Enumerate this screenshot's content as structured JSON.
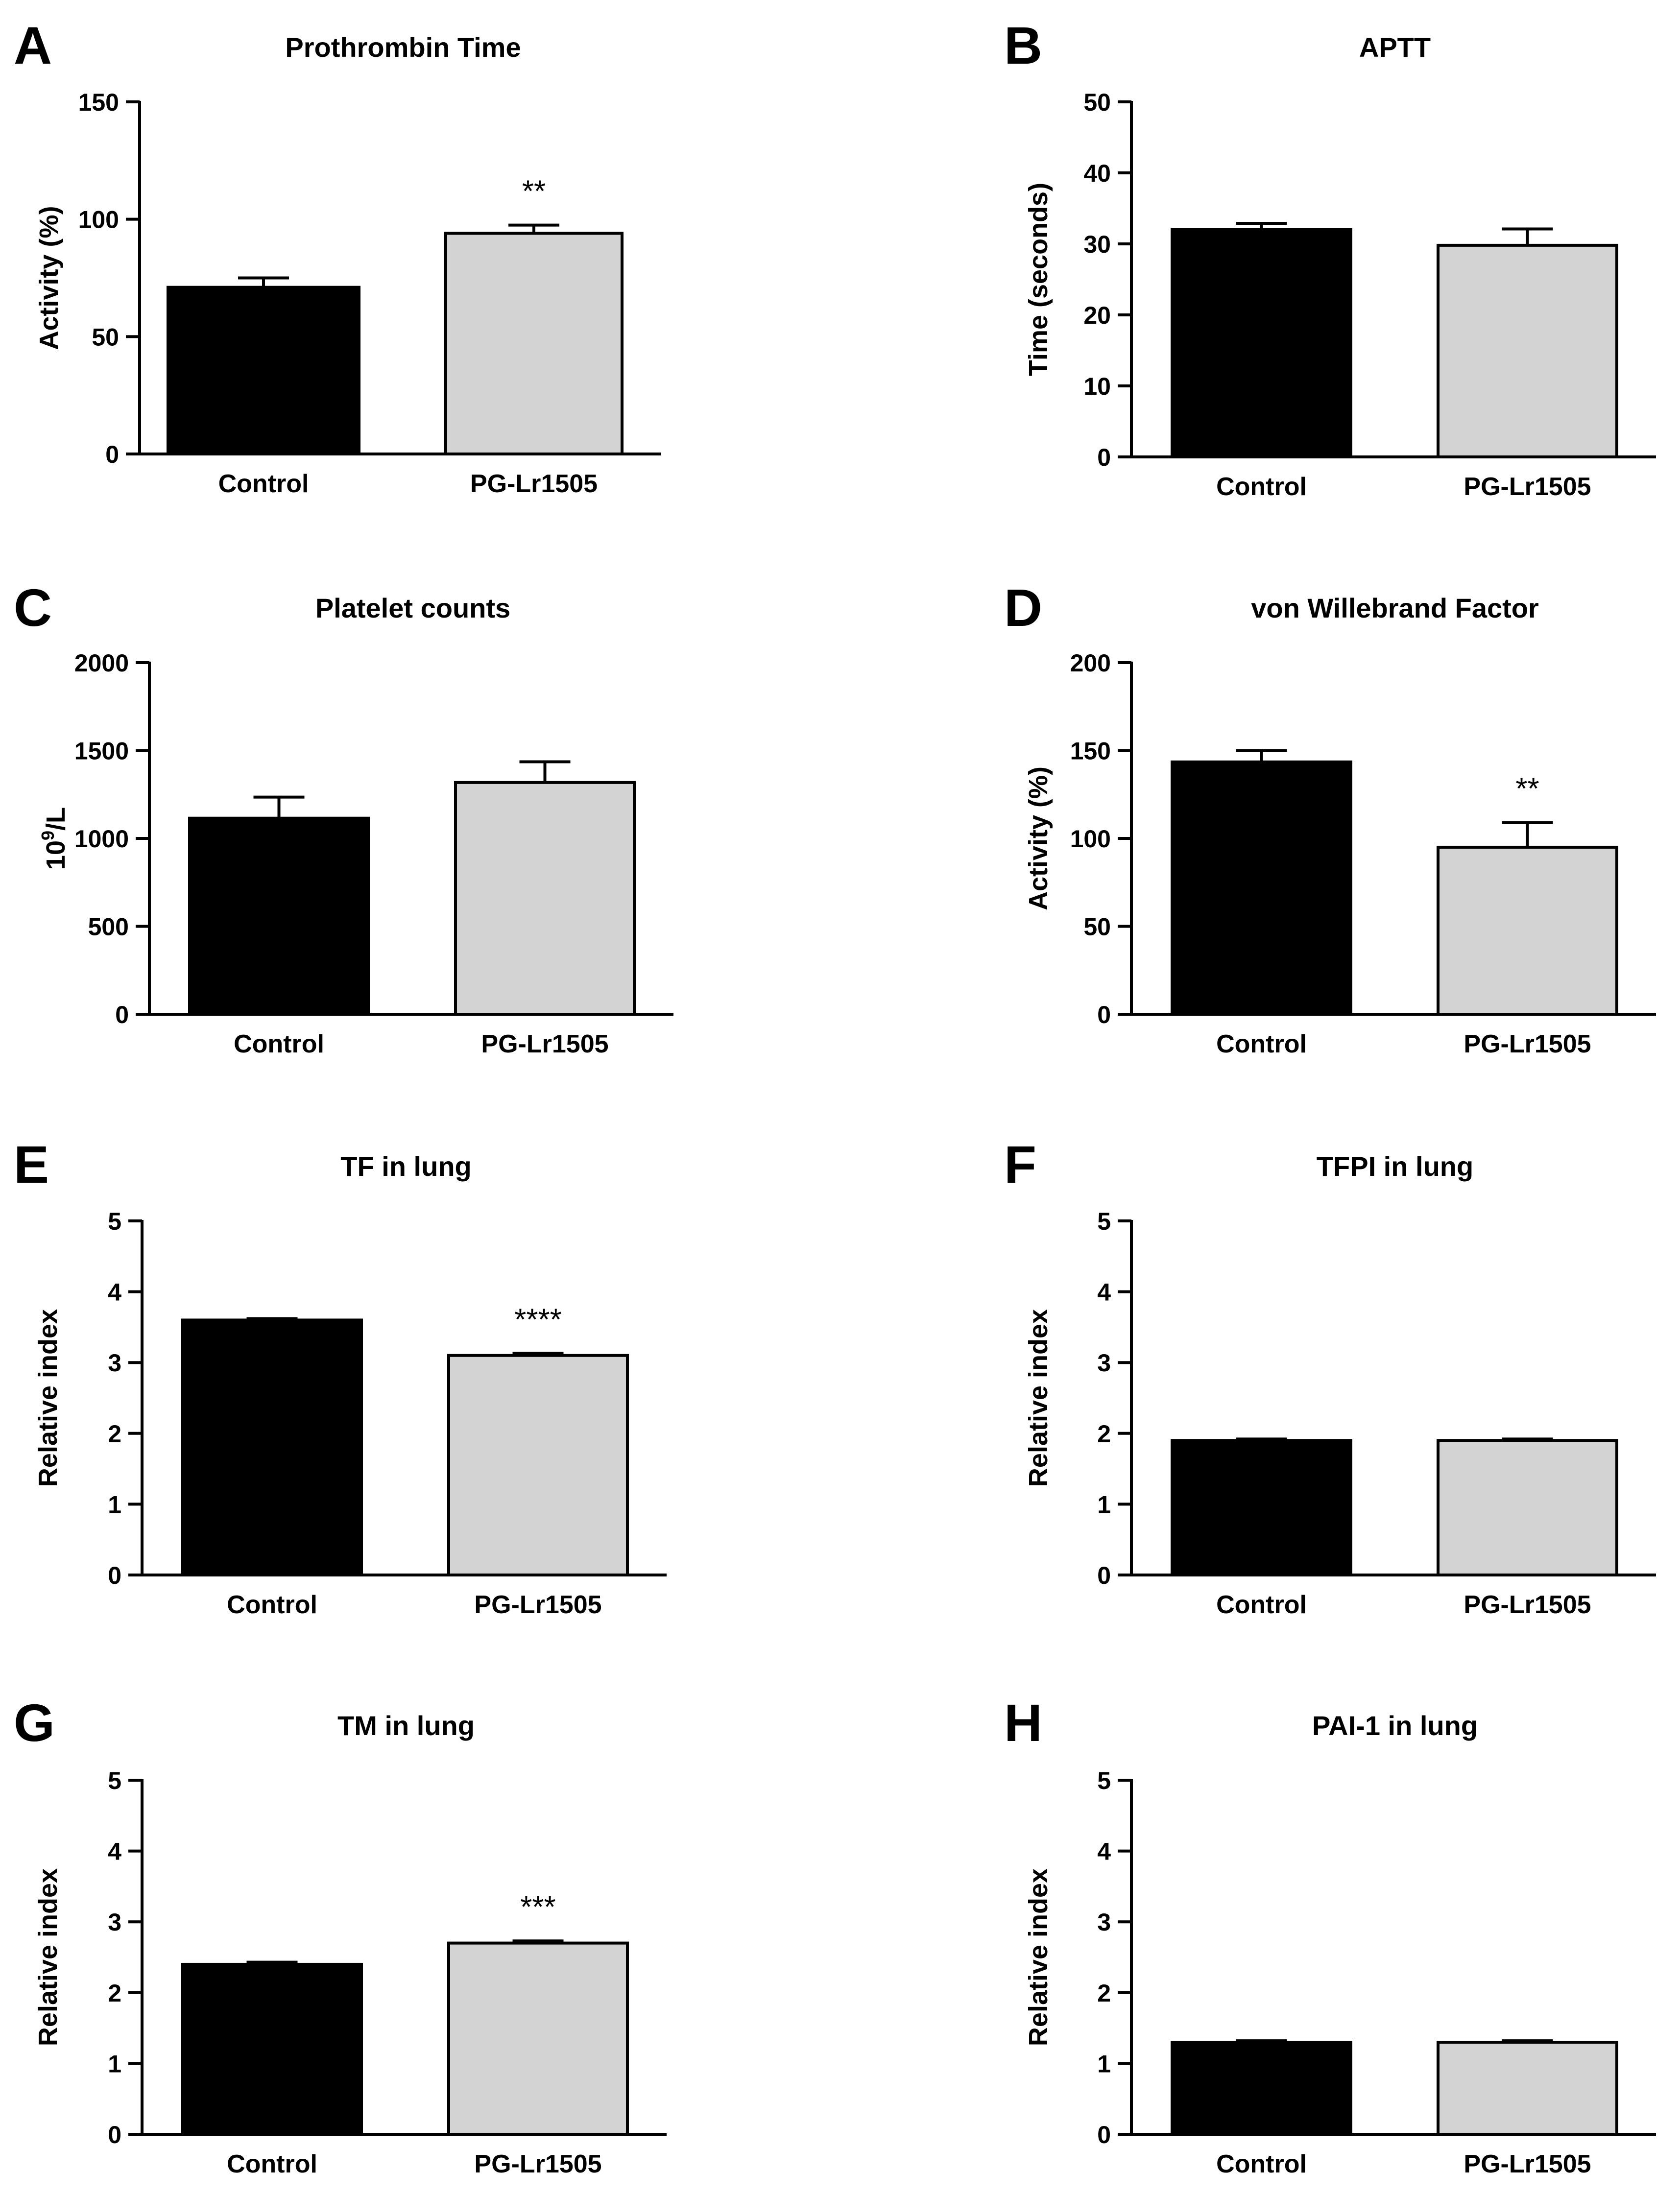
{
  "figure": {
    "colors": {
      "control": "#000000",
      "treatment": "#d3d3d3",
      "axis": "#000000"
    }
  },
  "chart_data": [
    {
      "panel_letter": "A",
      "type": "bar",
      "title": "Prothrombin Time",
      "ylabel": "Activity (%)",
      "ylim": [
        0,
        150
      ],
      "yticks": [
        0,
        50,
        100,
        150
      ],
      "categories": [
        "Control",
        "PG-Lr1505"
      ],
      "values": [
        71,
        94
      ],
      "errors": [
        4,
        3.5
      ],
      "significance": [
        "",
        "**"
      ]
    },
    {
      "panel_letter": "B",
      "type": "bar",
      "title": "APTT",
      "ylabel": "Time (seconds)",
      "ylim": [
        0,
        50
      ],
      "yticks": [
        0,
        10,
        20,
        30,
        40,
        50
      ],
      "categories": [
        "Control",
        "PG-Lr1505"
      ],
      "values": [
        32,
        29.8
      ],
      "errors": [
        0.9,
        2.3
      ],
      "significance": [
        "",
        ""
      ]
    },
    {
      "panel_letter": "C",
      "type": "bar",
      "title": "Platelet counts",
      "ylabel_base": "10",
      "ylabel_exp": "9",
      "ylabel_rest": "/L",
      "ylim": [
        0,
        2000
      ],
      "yticks": [
        0,
        500,
        1000,
        1500,
        2000
      ],
      "categories": [
        "Control",
        "PG-Lr1505"
      ],
      "values": [
        1115,
        1318
      ],
      "errors": [
        120,
        118
      ],
      "significance": [
        "",
        ""
      ]
    },
    {
      "panel_letter": "D",
      "type": "bar",
      "title": "von Willebrand Factor",
      "ylabel": "Activity (%)",
      "ylim": [
        0,
        200
      ],
      "yticks": [
        0,
        50,
        100,
        150,
        200
      ],
      "categories": [
        "Control",
        "PG-Lr1505"
      ],
      "values": [
        143.5,
        95
      ],
      "errors": [
        6.5,
        14
      ],
      "significance": [
        "",
        "**"
      ]
    },
    {
      "panel_letter": "E",
      "type": "bar",
      "title": "TF in lung",
      "ylabel": "Relative index",
      "ylim": [
        0,
        5
      ],
      "yticks": [
        0,
        1,
        2,
        3,
        4,
        5
      ],
      "categories": [
        "Control",
        "PG-Lr1505"
      ],
      "values": [
        3.6,
        3.1
      ],
      "errors": [
        0.02,
        0.03
      ],
      "significance": [
        "",
        "****"
      ]
    },
    {
      "panel_letter": "F",
      "type": "bar",
      "title": "TFPI in lung",
      "ylabel": "Relative index",
      "ylim": [
        0,
        5
      ],
      "yticks": [
        0,
        1,
        2,
        3,
        4,
        5
      ],
      "categories": [
        "Control",
        "PG-Lr1505"
      ],
      "values": [
        1.9,
        1.9
      ],
      "errors": [
        0.02,
        0.02
      ],
      "significance": [
        "",
        ""
      ]
    },
    {
      "panel_letter": "G",
      "type": "bar",
      "title": "TM in lung",
      "ylabel": "Relative index",
      "ylim": [
        0,
        5
      ],
      "yticks": [
        0,
        1,
        2,
        3,
        4,
        5
      ],
      "categories": [
        "Control",
        "PG-Lr1505"
      ],
      "values": [
        2.4,
        2.7
      ],
      "errors": [
        0.03,
        0.03
      ],
      "significance": [
        "",
        "***"
      ]
    },
    {
      "panel_letter": "H",
      "type": "bar",
      "title": "PAI-1 in lung",
      "ylabel": "Relative index",
      "ylim": [
        0,
        5
      ],
      "yticks": [
        0,
        1,
        2,
        3,
        4,
        5
      ],
      "categories": [
        "Control",
        "PG-Lr1505"
      ],
      "values": [
        1.3,
        1.3
      ],
      "errors": [
        0.02,
        0.02
      ],
      "significance": [
        "",
        ""
      ]
    }
  ]
}
